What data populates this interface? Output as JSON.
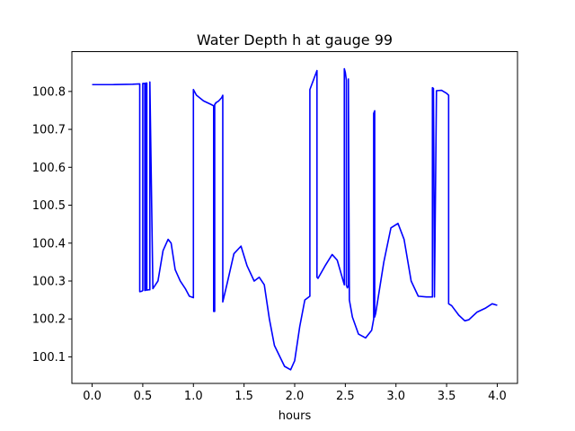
{
  "chart_data": {
    "type": "line",
    "title": "Water Depth h at gauge 99",
    "xlabel": "hours",
    "ylabel": "",
    "xlim": [
      -0.2,
      4.2
    ],
    "ylim": [
      100.03,
      100.905
    ],
    "xticks": [
      0.0,
      0.5,
      1.0,
      1.5,
      2.0,
      2.5,
      3.0,
      3.5,
      4.0
    ],
    "xtick_labels": [
      "0.0",
      "0.5",
      "1.0",
      "1.5",
      "2.0",
      "2.5",
      "3.0",
      "3.5",
      "4.0"
    ],
    "yticks": [
      100.1,
      100.2,
      100.3,
      100.4,
      100.5,
      100.6,
      100.7,
      100.8
    ],
    "ytick_labels": [
      "100.1",
      "100.2",
      "100.3",
      "100.4",
      "100.5",
      "100.6",
      "100.7",
      "100.8"
    ],
    "grid": false,
    "line_color": "#0000ff",
    "series": [
      {
        "x": [
          0.0,
          0.2,
          0.4,
          0.47,
          0.47,
          0.49,
          0.5,
          0.5,
          0.52,
          0.52,
          0.53,
          0.53,
          0.54,
          0.54,
          0.56,
          0.57,
          0.57,
          0.6,
          0.65,
          0.7,
          0.75,
          0.78,
          0.82,
          0.87,
          0.92,
          0.96,
          1.0,
          1.0,
          1.03,
          1.1,
          1.18,
          1.2,
          1.2,
          1.21,
          1.21,
          1.22,
          1.22,
          1.25,
          1.28,
          1.29,
          1.29,
          1.33,
          1.4,
          1.47,
          1.53,
          1.6,
          1.65,
          1.7,
          1.75,
          1.8,
          1.9,
          1.96,
          2.0,
          2.05,
          2.1,
          2.15,
          2.15,
          2.22,
          2.22,
          2.23,
          2.3,
          2.37,
          2.42,
          2.49,
          2.49,
          2.5,
          2.51,
          2.51,
          2.52,
          2.53,
          2.53,
          2.54,
          2.57,
          2.63,
          2.7,
          2.76,
          2.78,
          2.78,
          2.79,
          2.79,
          2.8,
          2.88,
          2.95,
          3.02,
          3.08,
          3.15,
          3.22,
          3.3,
          3.36,
          3.36,
          3.37,
          3.38,
          3.38,
          3.4,
          3.45,
          3.5,
          3.52,
          3.52,
          3.55,
          3.62,
          3.68,
          3.72,
          3.8,
          3.88,
          3.95,
          4.0
        ],
        "y": [
          100.818,
          100.818,
          100.819,
          100.82,
          100.272,
          100.273,
          100.275,
          100.821,
          100.821,
          100.275,
          100.276,
          100.822,
          100.822,
          100.276,
          100.277,
          100.277,
          100.825,
          100.28,
          100.3,
          100.38,
          100.41,
          100.4,
          100.33,
          100.3,
          100.28,
          100.26,
          100.256,
          100.805,
          100.79,
          100.775,
          100.765,
          100.762,
          100.22,
          100.22,
          100.766,
          100.768,
          100.77,
          100.775,
          100.784,
          100.79,
          100.245,
          100.29,
          100.372,
          100.392,
          100.34,
          100.3,
          100.31,
          100.29,
          100.2,
          100.13,
          100.075,
          100.066,
          100.09,
          100.18,
          100.25,
          100.26,
          100.805,
          100.855,
          100.31,
          100.307,
          100.34,
          100.37,
          100.355,
          100.29,
          100.86,
          100.85,
          100.83,
          100.29,
          100.282,
          100.287,
          100.833,
          100.25,
          100.205,
          100.16,
          100.15,
          100.17,
          100.2,
          100.742,
          100.749,
          100.205,
          100.215,
          100.35,
          100.44,
          100.452,
          100.41,
          100.3,
          100.26,
          100.258,
          100.258,
          100.81,
          100.808,
          100.27,
          100.258,
          100.802,
          100.803,
          100.795,
          100.79,
          100.24,
          100.235,
          100.21,
          100.195,
          100.198,
          100.218,
          100.228,
          100.24,
          100.236
        ]
      }
    ]
  }
}
